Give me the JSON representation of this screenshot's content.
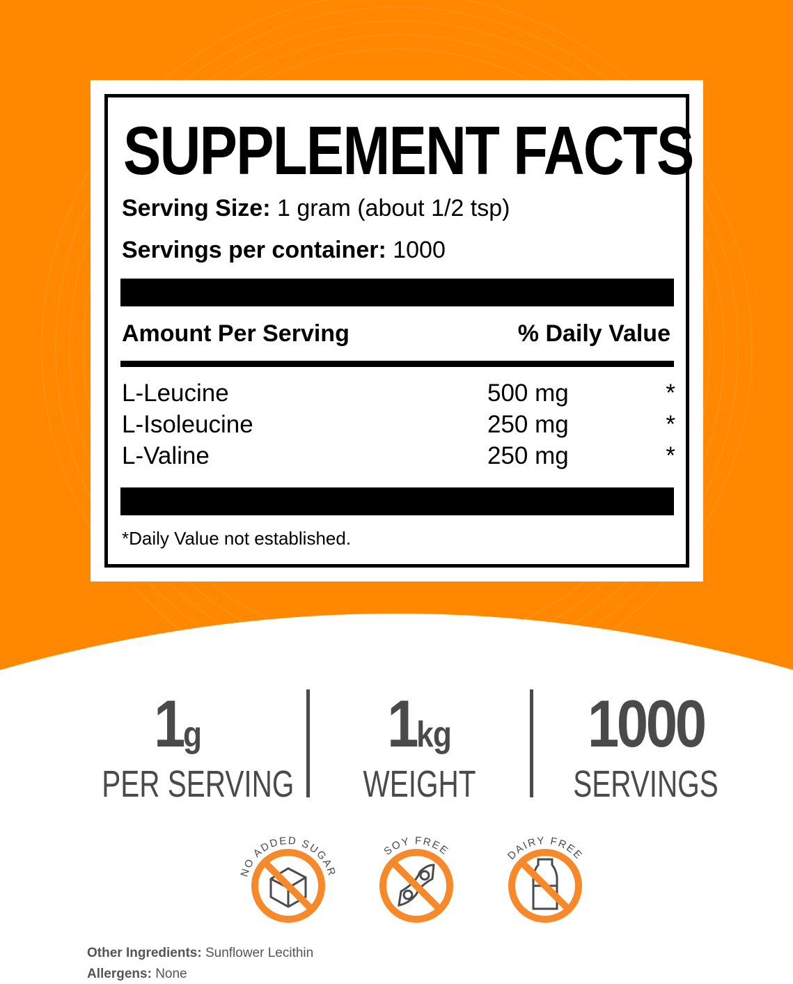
{
  "colors": {
    "orange": "#ff8800",
    "dark_grey": "#4a4a4a"
  },
  "facts": {
    "title": "SUPPLEMENT FACTS",
    "serving_size_label": "Serving Size:",
    "serving_size_value": " 1 gram (about 1/2 tsp)",
    "servings_label": "Servings per container:",
    "servings_value": " 1000",
    "amount_header": "Amount Per Serving",
    "dv_header": "% Daily Value",
    "ingredients": [
      {
        "name": "L-Leucine",
        "amount": "500 mg",
        "dv": "*"
      },
      {
        "name": "L-Isoleucine",
        "amount": "250 mg",
        "dv": "*"
      },
      {
        "name": "L-Valine",
        "amount": "250 mg",
        "dv": "*"
      }
    ],
    "footnote": "*Daily Value not established."
  },
  "stats": [
    {
      "value": "1",
      "unit": "g",
      "label": "PER SERVING"
    },
    {
      "value": "1",
      "unit": "kg",
      "label": "WEIGHT"
    },
    {
      "value": "1000",
      "unit": "",
      "label": "SERVINGS"
    }
  ],
  "badges": [
    {
      "text": "NO ADDED SUGAR",
      "icon": "sugar-cube-icon"
    },
    {
      "text": "SOY FREE",
      "icon": "soybean-icon"
    },
    {
      "text": "DAIRY FREE",
      "icon": "milk-bottle-icon"
    }
  ],
  "footer": {
    "other_label": "Other Ingredients:",
    "other_value": " Sunflower Lecithin",
    "allergens_label": "Allergens:",
    "allergens_value": " None"
  }
}
